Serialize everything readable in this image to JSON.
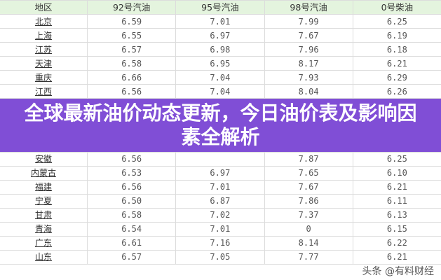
{
  "table": {
    "headers": [
      "地区",
      "92号汽油",
      "95号汽油",
      "98号汽油",
      "0号柴油"
    ],
    "rows": [
      [
        "北京",
        "6.59",
        "7.01",
        "7.99",
        "6.25"
      ],
      [
        "上海",
        "6.55",
        "6.97",
        "7.67",
        "6.19"
      ],
      [
        "江苏",
        "6.57",
        "6.98",
        "7.96",
        "6.18"
      ],
      [
        "天津",
        "6.58",
        "6.95",
        "8.17",
        "6.21"
      ],
      [
        "重庆",
        "6.66",
        "7.04",
        "7.93",
        "6.29"
      ],
      [
        "江西",
        "6.56",
        "7.04",
        "8.04",
        "6.26"
      ],
      [
        "",
        "",
        "",
        "",
        ""
      ],
      [
        "安徽",
        "6.56",
        "",
        "7.87",
        "6.25"
      ],
      [
        "内蒙古",
        "6.53",
        "6.97",
        "7.65",
        "6.10"
      ],
      [
        "福建",
        "6.56",
        "7.01",
        "7.67",
        "6.21"
      ],
      [
        "宁夏",
        "6.50",
        "6.87",
        "7.86",
        "6.11"
      ],
      [
        "甘肃",
        "6.58",
        "7.02",
        "7.37",
        "6.13"
      ],
      [
        "青海",
        "6.54",
        "7.01",
        "0",
        "6.15"
      ],
      [
        "广东",
        "6.61",
        "7.16",
        "8.14",
        "6.22"
      ],
      [
        "山东",
        "6.57",
        "7.05",
        "7.77",
        "6.21"
      ]
    ]
  },
  "banner": {
    "title": "全球最新油价动态更新，今日油价表及影响因素全解析"
  },
  "watermark": "头条 @有料财经",
  "colors": {
    "header_bg": "#e4f4de",
    "banner_bg": "#804ed6"
  }
}
